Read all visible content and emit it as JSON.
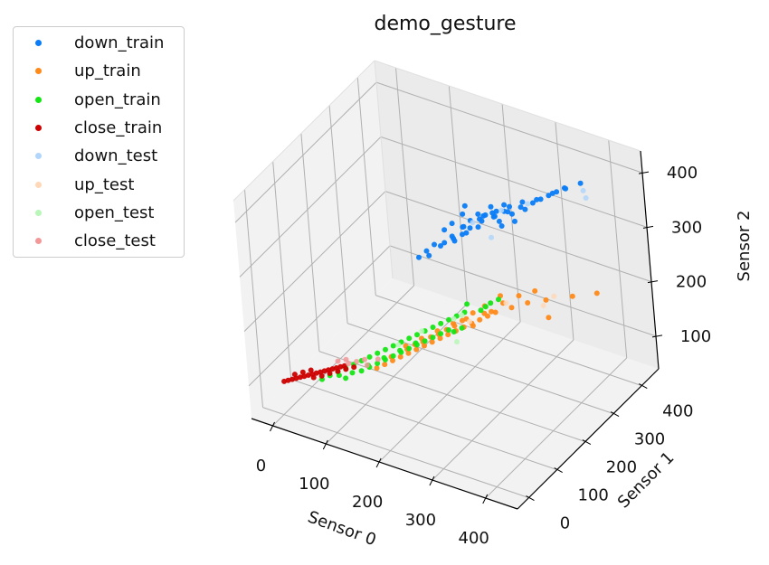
{
  "chart_data": {
    "type": "scatter",
    "title": "demo_gesture",
    "xlabel": "Sensor 0",
    "ylabel": "Sensor 1",
    "zlabel": "Sensor 2",
    "xlim": [
      -40,
      460
    ],
    "ylim": [
      -40,
      460
    ],
    "zlim": [
      40,
      440
    ],
    "x_ticks": [
      "0",
      "100",
      "200",
      "300",
      "400"
    ],
    "y_ticks": [
      "0",
      "100",
      "200",
      "300",
      "400"
    ],
    "z_ticks": [
      "100",
      "200",
      "300",
      "400"
    ],
    "grid": true,
    "legend_position": "upper-left-outside",
    "series": [
      {
        "name": "down_train",
        "color": "#0a7cf7",
        "points": [
          [
            380,
            390,
            390
          ],
          [
            330,
            340,
            370
          ],
          [
            300,
            330,
            360
          ],
          [
            260,
            310,
            340
          ],
          [
            280,
            320,
            350
          ],
          [
            240,
            300,
            330
          ],
          [
            220,
            290,
            320
          ],
          [
            210,
            280,
            310
          ],
          [
            200,
            300,
            320
          ],
          [
            230,
            270,
            320
          ],
          [
            250,
            290,
            340
          ],
          [
            270,
            300,
            330
          ],
          [
            290,
            310,
            345
          ],
          [
            310,
            320,
            355
          ],
          [
            320,
            330,
            365
          ],
          [
            340,
            350,
            375
          ],
          [
            350,
            360,
            380
          ],
          [
            360,
            370,
            385
          ],
          [
            200,
            260,
            300
          ],
          [
            190,
            250,
            290
          ],
          [
            180,
            270,
            300
          ],
          [
            170,
            250,
            280
          ],
          [
            160,
            240,
            270
          ],
          [
            150,
            230,
            260
          ],
          [
            210,
            250,
            300
          ],
          [
            220,
            260,
            310
          ],
          [
            240,
            280,
            320
          ],
          [
            260,
            300,
            335
          ],
          [
            280,
            290,
            330
          ],
          [
            300,
            300,
            340
          ],
          [
            230,
            300,
            330
          ],
          [
            250,
            310,
            345
          ],
          [
            270,
            320,
            350
          ],
          [
            190,
            280,
            310
          ],
          [
            200,
            310,
            330
          ],
          [
            215,
            275,
            315
          ],
          [
            245,
            285,
            330
          ],
          [
            265,
            295,
            340
          ],
          [
            285,
            305,
            350
          ],
          [
            305,
            315,
            360
          ],
          [
            325,
            335,
            370
          ],
          [
            345,
            355,
            378
          ],
          [
            365,
            365,
            388
          ],
          [
            170,
            230,
            270
          ],
          [
            185,
            245,
            285
          ],
          [
            205,
            255,
            300
          ],
          [
            225,
            265,
            312
          ],
          [
            235,
            295,
            325
          ],
          [
            255,
            305,
            338
          ],
          [
            275,
            310,
            345
          ]
        ]
      },
      {
        "name": "up_train",
        "color": "#ff8a1a",
        "points": [
          [
            400,
            380,
            200
          ],
          [
            330,
            330,
            190
          ],
          [
            300,
            320,
            180
          ],
          [
            280,
            300,
            175
          ],
          [
            260,
            280,
            170
          ],
          [
            250,
            270,
            165
          ],
          [
            240,
            260,
            160
          ],
          [
            230,
            250,
            155
          ],
          [
            220,
            240,
            150
          ],
          [
            210,
            230,
            145
          ],
          [
            200,
            220,
            140
          ],
          [
            190,
            210,
            135
          ],
          [
            180,
            200,
            130
          ],
          [
            170,
            190,
            125
          ],
          [
            160,
            180,
            120
          ],
          [
            150,
            170,
            115
          ],
          [
            140,
            160,
            110
          ],
          [
            130,
            150,
            105
          ],
          [
            120,
            140,
            100
          ],
          [
            110,
            130,
            95
          ],
          [
            250,
            260,
            175
          ],
          [
            270,
            290,
            185
          ],
          [
            290,
            310,
            195
          ],
          [
            310,
            330,
            200
          ],
          [
            260,
            300,
            190
          ],
          [
            240,
            280,
            175
          ],
          [
            220,
            250,
            160
          ],
          [
            200,
            240,
            150
          ],
          [
            180,
            220,
            140
          ],
          [
            160,
            200,
            130
          ],
          [
            140,
            180,
            120
          ],
          [
            350,
            300,
            180
          ],
          [
            370,
            350,
            200
          ],
          [
            225,
            265,
            165
          ],
          [
            205,
            235,
            150
          ],
          [
            185,
            215,
            138
          ],
          [
            165,
            195,
            128
          ],
          [
            145,
            175,
            118
          ],
          [
            125,
            155,
            108
          ],
          [
            235,
            245,
            155
          ],
          [
            255,
            275,
            172
          ],
          [
            215,
            245,
            158
          ],
          [
            195,
            225,
            145
          ],
          [
            175,
            205,
            135
          ],
          [
            155,
            185,
            125
          ]
        ]
      },
      {
        "name": "open_train",
        "color": "#14e614",
        "points": [
          [
            20,
            100,
            60
          ],
          [
            30,
            110,
            65
          ],
          [
            40,
            120,
            70
          ],
          [
            50,
            130,
            75
          ],
          [
            60,
            140,
            80
          ],
          [
            70,
            150,
            85
          ],
          [
            80,
            160,
            90
          ],
          [
            90,
            170,
            95
          ],
          [
            100,
            180,
            100
          ],
          [
            110,
            190,
            105
          ],
          [
            120,
            200,
            110
          ],
          [
            130,
            210,
            115
          ],
          [
            140,
            220,
            120
          ],
          [
            150,
            230,
            125
          ],
          [
            160,
            240,
            130
          ],
          [
            170,
            250,
            135
          ],
          [
            180,
            260,
            140
          ],
          [
            190,
            270,
            145
          ],
          [
            200,
            280,
            150
          ],
          [
            210,
            250,
            140
          ],
          [
            220,
            300,
            150
          ],
          [
            230,
            300,
            160
          ],
          [
            240,
            300,
            170
          ],
          [
            250,
            310,
            175
          ],
          [
            200,
            290,
            160
          ],
          [
            60,
            110,
            70
          ],
          [
            80,
            130,
            80
          ],
          [
            100,
            150,
            90
          ],
          [
            120,
            170,
            100
          ],
          [
            140,
            190,
            110
          ],
          [
            160,
            210,
            120
          ],
          [
            180,
            230,
            130
          ],
          [
            200,
            240,
            135
          ],
          [
            90,
            140,
            85
          ],
          [
            110,
            160,
            95
          ],
          [
            130,
            180,
            105
          ],
          [
            150,
            200,
            115
          ],
          [
            170,
            220,
            125
          ],
          [
            190,
            240,
            135
          ],
          [
            45,
            115,
            68
          ],
          [
            65,
            125,
            74
          ],
          [
            85,
            145,
            84
          ],
          [
            105,
            165,
            94
          ],
          [
            125,
            185,
            104
          ],
          [
            145,
            205,
            114
          ]
        ]
      },
      {
        "name": "close_train",
        "color": "#cc0000",
        "points": [
          [
            -30,
            60,
            60
          ],
          [
            -20,
            70,
            62
          ],
          [
            -10,
            80,
            64
          ],
          [
            0,
            90,
            66
          ],
          [
            10,
            100,
            68
          ],
          [
            20,
            110,
            70
          ],
          [
            30,
            120,
            72
          ],
          [
            40,
            130,
            74
          ],
          [
            -15,
            75,
            63
          ],
          [
            -5,
            85,
            65
          ],
          [
            5,
            95,
            67
          ],
          [
            15,
            105,
            69
          ],
          [
            25,
            115,
            71
          ],
          [
            35,
            125,
            73
          ],
          [
            -25,
            65,
            61
          ],
          [
            45,
            135,
            75
          ],
          [
            0,
            100,
            70
          ],
          [
            10,
            90,
            65
          ],
          [
            20,
            100,
            66
          ],
          [
            -10,
            90,
            68
          ],
          [
            30,
            110,
            69
          ],
          [
            40,
            120,
            71
          ],
          [
            50,
            130,
            73
          ],
          [
            60,
            140,
            75
          ],
          [
            -20,
            80,
            66
          ]
        ]
      },
      {
        "name": "down_test",
        "color": "#b2d6fb",
        "points": [
          [
            400,
            370,
            380
          ],
          [
            390,
            380,
            385
          ],
          [
            240,
            320,
            280
          ],
          [
            310,
            330,
            360
          ],
          [
            270,
            310,
            345
          ],
          [
            230,
            280,
            325
          ]
        ]
      },
      {
        "name": "up_test",
        "color": "#ffd8b8",
        "points": [
          [
            330,
            320,
            185
          ],
          [
            340,
            340,
            195
          ],
          [
            270,
            300,
            180
          ],
          [
            220,
            260,
            150
          ]
        ]
      },
      {
        "name": "open_test",
        "color": "#b8f7b8",
        "points": [
          [
            200,
            270,
            150
          ],
          [
            190,
            260,
            145
          ],
          [
            150,
            220,
            130
          ],
          [
            210,
            230,
            125
          ],
          [
            120,
            190,
            110
          ]
        ]
      },
      {
        "name": "close_test",
        "color": "#f29898",
        "points": [
          [
            60,
            150,
            80
          ],
          [
            70,
            160,
            82
          ],
          [
            50,
            140,
            78
          ],
          [
            80,
            150,
            80
          ],
          [
            30,
            140,
            76
          ],
          [
            40,
            150,
            77
          ],
          [
            90,
            170,
            84
          ]
        ]
      }
    ]
  }
}
